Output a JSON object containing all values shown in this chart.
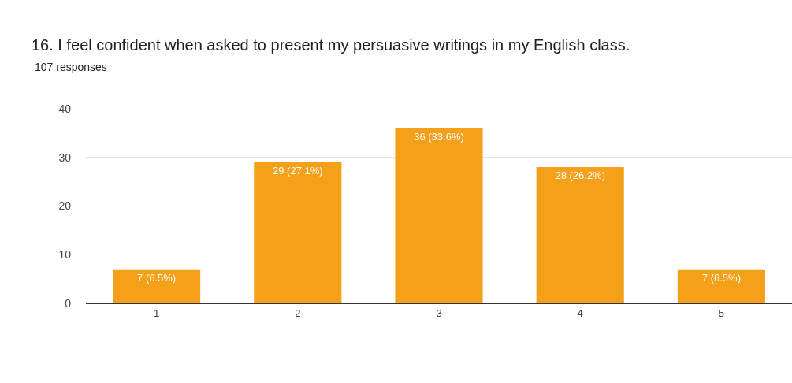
{
  "chart_data": {
    "type": "bar",
    "title": "16. I feel confident when asked to present my persuasive writings in my English class.",
    "subtitle": "107 responses",
    "categories": [
      "1",
      "2",
      "3",
      "4",
      "5"
    ],
    "values": [
      7,
      29,
      36,
      28,
      7
    ],
    "value_labels": [
      "7 (6.5%)",
      "29 (27.1%)",
      "36 (33.6%)",
      "28 (26.2%)",
      "7 (6.5%)"
    ],
    "color": "#f4a019",
    "ylim": [
      0,
      40
    ],
    "yticks": [
      0,
      10,
      20,
      30,
      40
    ],
    "grid": "y",
    "legend": false
  }
}
